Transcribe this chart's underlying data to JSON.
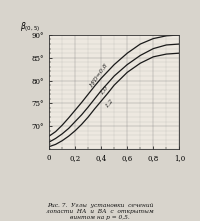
{
  "xlim": [
    0.0,
    1.0
  ],
  "ylim": [
    65,
    90
  ],
  "yticks": [
    70,
    75,
    80,
    85,
    90
  ],
  "ytick_labels": [
    "70°",
    "75°",
    "80°",
    "85°",
    "90°"
  ],
  "xticks": [
    0,
    0.2,
    0.4,
    0.6,
    0.8,
    1.0
  ],
  "xtick_labels": [
    "0",
    "0,2",
    "0,4",
    "0,6",
    "0,8",
    "1,0"
  ],
  "lines": [
    {
      "label": "H/D=0,8",
      "x": [
        0.0,
        0.05,
        0.1,
        0.15,
        0.2,
        0.25,
        0.3,
        0.35,
        0.4,
        0.45,
        0.5,
        0.6,
        0.7,
        0.8,
        0.9,
        1.0
      ],
      "y": [
        67.8,
        68.8,
        70.2,
        71.8,
        73.5,
        75.2,
        77.0,
        78.8,
        80.5,
        82.0,
        83.5,
        86.0,
        88.0,
        89.2,
        89.8,
        90.0
      ]
    },
    {
      "label": "1,0",
      "x": [
        0.0,
        0.05,
        0.1,
        0.15,
        0.2,
        0.25,
        0.3,
        0.35,
        0.4,
        0.45,
        0.5,
        0.6,
        0.7,
        0.8,
        0.9,
        1.0
      ],
      "y": [
        66.5,
        67.3,
        68.3,
        69.5,
        71.0,
        72.5,
        74.2,
        76.0,
        77.8,
        79.4,
        81.0,
        83.5,
        85.5,
        87.0,
        87.8,
        88.0
      ]
    },
    {
      "label": "1,2",
      "x": [
        0.0,
        0.05,
        0.1,
        0.15,
        0.2,
        0.25,
        0.3,
        0.35,
        0.4,
        0.45,
        0.5,
        0.6,
        0.7,
        0.8,
        0.9,
        1.0
      ],
      "y": [
        65.5,
        66.0,
        66.8,
        67.8,
        69.0,
        70.4,
        72.0,
        73.8,
        75.5,
        77.2,
        79.0,
        81.8,
        83.8,
        85.2,
        85.8,
        86.0
      ]
    }
  ],
  "line_color": "#1a1a1a",
  "label_positions": [
    [
      0.38,
      81.2,
      "H/D=0,8"
    ],
    [
      0.42,
      78.0,
      "1,0"
    ],
    [
      0.46,
      75.0,
      "1,2"
    ]
  ],
  "label_angles": [
    55,
    53,
    51
  ],
  "ylabel_text": "β(0,5)",
  "ylabel_top": "90°",
  "caption": "Рис. 7.  Углы  установки  сечений\nлопасти  НА  и  ВА  с  открытым\nвинтом на р = 0,5.",
  "bg_color": "#ede8e0",
  "grid_color": "#888888",
  "fig_bg": "#d8d4cc"
}
